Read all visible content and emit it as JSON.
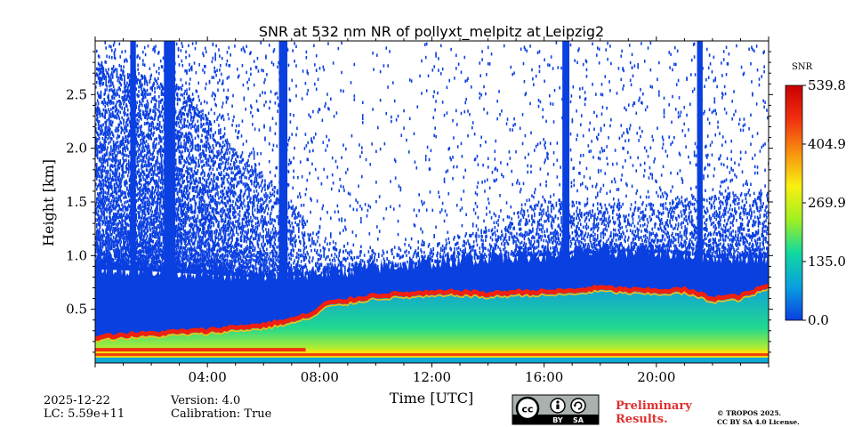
{
  "chart_data": {
    "type": "heatmap",
    "title": "SNR at 532 nm NR of pollyxt_melpitz at Leipzig2",
    "xlabel": "Time [UTC]",
    "ylabel": "Height [km]",
    "xlim_hours": [
      0,
      24
    ],
    "ylim_km": [
      0,
      3.0
    ],
    "x_ticks": [
      {
        "value": 4,
        "label": "04:00"
      },
      {
        "value": 8,
        "label": "08:00"
      },
      {
        "value": 12,
        "label": "12:00"
      },
      {
        "value": 16,
        "label": "16:00"
      },
      {
        "value": 20,
        "label": "20:00"
      }
    ],
    "y_ticks": [
      {
        "value": 0.5,
        "label": "0.5"
      },
      {
        "value": 1.0,
        "label": "1.0"
      },
      {
        "value": 1.5,
        "label": "1.5"
      },
      {
        "value": 2.0,
        "label": "2.0"
      },
      {
        "value": 2.5,
        "label": "2.5"
      }
    ],
    "colorbar": {
      "label": "SNR",
      "min": 0.0,
      "max": 539.8,
      "ticks": [
        {
          "value": 0.0,
          "label": "0.0"
        },
        {
          "value": 135.0,
          "label": "135.0"
        },
        {
          "value": 269.9,
          "label": "269.9"
        },
        {
          "value": 404.9,
          "label": "404.9"
        },
        {
          "value": 539.8,
          "label": "539.8"
        }
      ],
      "colors": [
        "#0a3fe0",
        "#0aa0e0",
        "#10d8a0",
        "#a0f020",
        "#f8f010",
        "#f89010",
        "#f03010",
        "#c80000"
      ]
    },
    "layer_top_km": [
      [
        0,
        0.24
      ],
      [
        1,
        0.26
      ],
      [
        2,
        0.27
      ],
      [
        3,
        0.29
      ],
      [
        4,
        0.3
      ],
      [
        5,
        0.33
      ],
      [
        6,
        0.35
      ],
      [
        7,
        0.4
      ],
      [
        7.8,
        0.46
      ],
      [
        8.2,
        0.55
      ],
      [
        9,
        0.58
      ],
      [
        10,
        0.63
      ],
      [
        11,
        0.64
      ],
      [
        12,
        0.65
      ],
      [
        13,
        0.66
      ],
      [
        14,
        0.64
      ],
      [
        15,
        0.66
      ],
      [
        16,
        0.66
      ],
      [
        17,
        0.67
      ],
      [
        18,
        0.7
      ],
      [
        19,
        0.68
      ],
      [
        20,
        0.67
      ],
      [
        21,
        0.68
      ],
      [
        22,
        0.6
      ],
      [
        23,
        0.62
      ],
      [
        24,
        0.72
      ]
    ],
    "noise_top_km": [
      [
        0,
        0.9
      ],
      [
        2,
        0.88
      ],
      [
        4,
        0.85
      ],
      [
        6,
        0.82
      ],
      [
        8,
        0.85
      ],
      [
        10,
        0.9
      ],
      [
        12,
        0.95
      ],
      [
        14,
        1.0
      ],
      [
        16,
        1.02
      ],
      [
        18,
        1.05
      ],
      [
        20,
        1.05
      ],
      [
        22,
        1.0
      ],
      [
        24,
        1.0
      ]
    ],
    "noise_sparse_top_km": [
      [
        0,
        2.8
      ],
      [
        3,
        2.6
      ],
      [
        5,
        2.0
      ],
      [
        7,
        1.5
      ],
      [
        8,
        1.2
      ],
      [
        10,
        1.05
      ],
      [
        12,
        1.15
      ],
      [
        14,
        1.3
      ],
      [
        16,
        1.55
      ],
      [
        18,
        1.5
      ],
      [
        20,
        1.5
      ],
      [
        22,
        1.6
      ],
      [
        24,
        1.6
      ]
    ],
    "cloud_columns_hours": [
      [
        1.25,
        1.45
      ],
      [
        2.45,
        2.85
      ],
      [
        6.55,
        6.85
      ],
      [
        16.65,
        16.9
      ],
      [
        21.45,
        21.65
      ]
    ]
  },
  "meta": {
    "date": "2025-12-22",
    "lc": "LC: 5.59e+11",
    "version": "Version: 4.0",
    "calibration": "Calibration: True"
  },
  "license": {
    "cc_by": "BY",
    "cc_sa": "SA",
    "preliminary_line1": "Preliminary",
    "preliminary_line2": "Results.",
    "copyright_line1": "© TROPOS 2025.",
    "copyright_line2": "CC BY SA 4.0 License."
  },
  "colors": {
    "preliminary": "#e03030",
    "noise_blue": "#0a3fe0"
  }
}
